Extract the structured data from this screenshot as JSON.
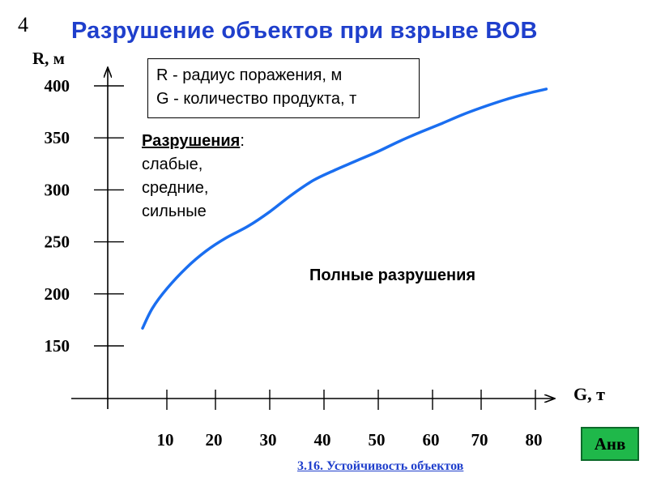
{
  "slide_number": "4",
  "title": "Разрушение объектов при взрыве ВОВ",
  "legend_box": {
    "line1": "R - радиус поражения, м",
    "line2": "G - количество продукта, т"
  },
  "destruction_zone": {
    "header": "Разрушения",
    "colon": ":",
    "items": [
      "слабые,",
      "средние,",
      "сильные"
    ]
  },
  "full_destruction_label": "Полные разрушения",
  "footer_link": "3.16. Устойчивость объектов",
  "nav_button_label": "Анв",
  "colors": {
    "title": "#1f3fcc",
    "curve": "#1a6ef0",
    "button": "#1fb84a",
    "link": "#1f3fcc"
  },
  "chart_data": {
    "type": "line",
    "title": "Разрушение объектов при взрыве ВОВ",
    "xlabel": "G, т",
    "ylabel": "R, м",
    "x_ticks": [
      10,
      20,
      30,
      40,
      50,
      60,
      70,
      80
    ],
    "y_ticks": [
      150,
      200,
      250,
      300,
      350,
      400
    ],
    "xlim": [
      0,
      82
    ],
    "ylim": [
      110,
      410
    ],
    "grid": false,
    "series": [
      {
        "x": [
          5,
          7,
          10,
          14,
          18,
          22,
          26,
          30,
          34,
          38,
          42,
          46,
          50,
          54,
          58,
          62,
          66,
          70,
          74,
          78,
          82
        ],
        "values": [
          167,
          186,
          205,
          225,
          241,
          254,
          265,
          279,
          295,
          309,
          319,
          328,
          337,
          347,
          356,
          364,
          372,
          379,
          386,
          392,
          397
        ]
      }
    ]
  }
}
